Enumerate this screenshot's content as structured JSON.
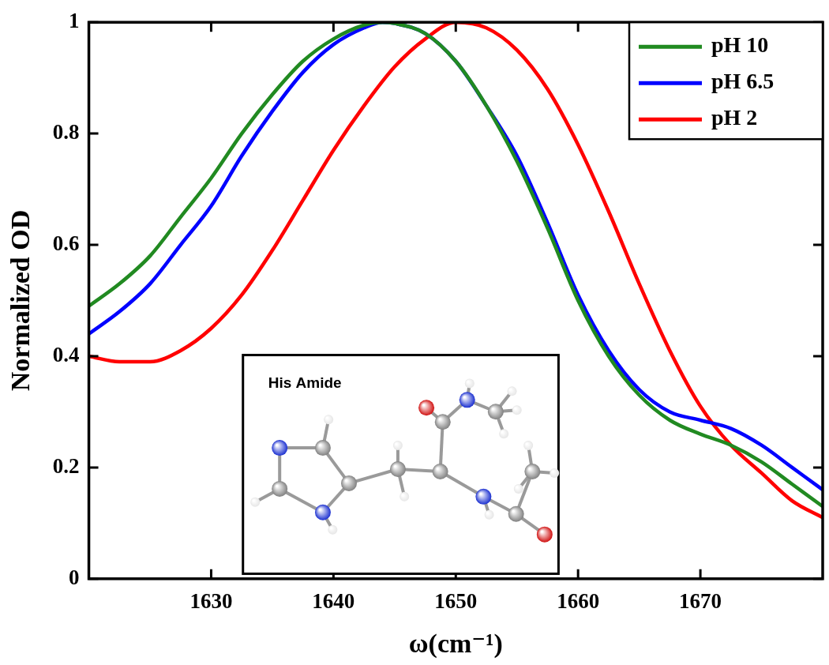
{
  "chart_data": {
    "type": "line",
    "x_label": "ω(cm⁻¹)",
    "y_label": "Normalized OD",
    "annotation": "His Amide",
    "xlim": [
      1620,
      1680
    ],
    "xticks": [
      1630,
      1640,
      1650,
      1660,
      1670
    ],
    "ylim": [
      0,
      1
    ],
    "yticks": [
      0,
      0.2,
      0.4,
      0.6,
      0.8,
      1
    ],
    "grid": false,
    "legend": "upper right",
    "series": [
      {
        "name": "pH 10",
        "color": "#218a21",
        "x": [
          1620,
          1622.5,
          1625,
          1627.5,
          1630,
          1632.5,
          1635,
          1637.5,
          1640,
          1642.5,
          1644,
          1645,
          1647.5,
          1650,
          1652.5,
          1655,
          1657.5,
          1660,
          1662.5,
          1665,
          1667.5,
          1670,
          1672.5,
          1675,
          1677.5,
          1680
        ],
        "values": [
          0.49,
          0.53,
          0.58,
          0.65,
          0.72,
          0.8,
          0.87,
          0.93,
          0.97,
          0.995,
          1.0,
          0.998,
          0.98,
          0.93,
          0.85,
          0.75,
          0.63,
          0.5,
          0.4,
          0.33,
          0.285,
          0.26,
          0.24,
          0.21,
          0.17,
          0.13
        ]
      },
      {
        "name": "pH 6.5",
        "color": "#0000ff",
        "x": [
          1620,
          1622.5,
          1625,
          1627.5,
          1630,
          1632.5,
          1635,
          1637.5,
          1640,
          1642.5,
          1644,
          1645,
          1647.5,
          1650,
          1652.5,
          1655,
          1657.5,
          1660,
          1662.5,
          1665,
          1667.5,
          1670,
          1672.5,
          1675,
          1677.5,
          1680
        ],
        "values": [
          0.44,
          0.48,
          0.53,
          0.6,
          0.67,
          0.76,
          0.84,
          0.91,
          0.96,
          0.99,
          1.0,
          0.998,
          0.98,
          0.93,
          0.85,
          0.76,
          0.64,
          0.51,
          0.41,
          0.34,
          0.3,
          0.285,
          0.27,
          0.24,
          0.2,
          0.16
        ]
      },
      {
        "name": "pH 2",
        "color": "#ff0000",
        "x": [
          1620,
          1622.5,
          1625,
          1627.5,
          1630,
          1632.5,
          1635,
          1637.5,
          1640,
          1642.5,
          1645,
          1647.5,
          1650,
          1652.5,
          1655,
          1657.5,
          1660,
          1662.5,
          1665,
          1667.5,
          1670,
          1672.5,
          1675,
          1677.5,
          1680
        ],
        "values": [
          0.4,
          0.39,
          0.39,
          0.41,
          0.45,
          0.51,
          0.59,
          0.68,
          0.77,
          0.85,
          0.92,
          0.97,
          1.0,
          0.99,
          0.95,
          0.88,
          0.78,
          0.66,
          0.53,
          0.41,
          0.31,
          0.24,
          0.19,
          0.14,
          0.11
        ]
      }
    ]
  }
}
